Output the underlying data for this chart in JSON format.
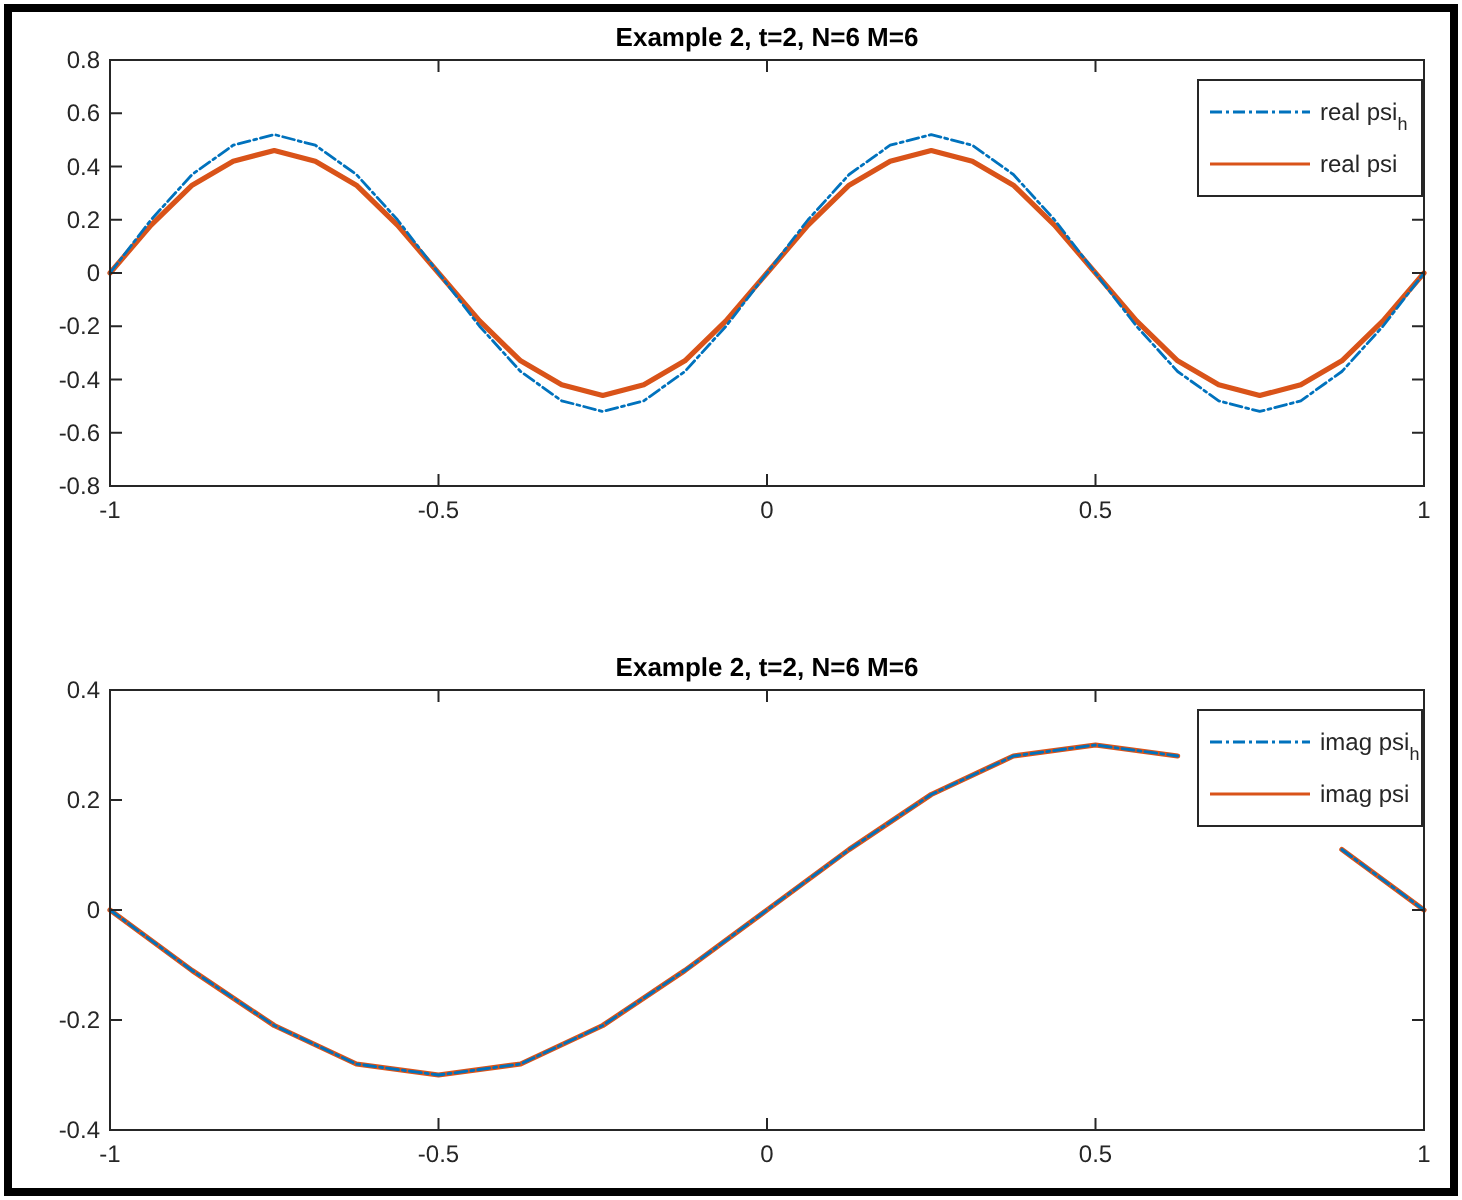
{
  "chart_data": [
    {
      "type": "line",
      "title": "Example 2, t=2, N=6 M=6",
      "xlim": [
        -1,
        1
      ],
      "ylim": [
        -0.8,
        0.8
      ],
      "xticks": [
        -1,
        -0.5,
        0,
        0.5,
        1
      ],
      "yticks": [
        -0.8,
        -0.6,
        -0.4,
        -0.2,
        0,
        0.2,
        0.4,
        0.6,
        0.8
      ],
      "legend": "top right",
      "grid": false,
      "x": [
        -1,
        -0.9375,
        -0.875,
        -0.8125,
        -0.75,
        -0.6875,
        -0.625,
        -0.5625,
        -0.5,
        -0.4375,
        -0.375,
        -0.3125,
        -0.25,
        -0.1875,
        -0.125,
        -0.0625,
        0,
        0.0625,
        0.125,
        0.1875,
        0.25,
        0.3125,
        0.375,
        0.4375,
        0.5,
        0.5625,
        0.625,
        0.6875,
        0.75,
        0.8125,
        0.875,
        0.9375,
        1
      ],
      "series": [
        {
          "name": "real psi$_{h}$",
          "color": "#0072bd",
          "line_style": "dashed",
          "values": [
            0,
            0.2,
            0.37,
            0.48,
            0.52,
            0.48,
            0.37,
            0.2,
            0,
            -0.2,
            -0.37,
            -0.48,
            -0.52,
            -0.48,
            -0.37,
            -0.2,
            0,
            0.2,
            0.37,
            0.48,
            0.52,
            0.48,
            0.37,
            0.2,
            0,
            -0.2,
            -0.37,
            -0.48,
            -0.52,
            -0.48,
            -0.37,
            -0.2,
            0
          ]
        },
        {
          "name": "real psi",
          "color": "#d95319",
          "line_style": "solid",
          "values": [
            0,
            0.18,
            0.33,
            0.42,
            0.46,
            0.42,
            0.33,
            0.18,
            0,
            -0.18,
            -0.33,
            -0.42,
            -0.46,
            -0.42,
            -0.33,
            -0.18,
            0,
            0.18,
            0.33,
            0.42,
            0.46,
            0.42,
            0.33,
            0.18,
            0,
            -0.18,
            -0.33,
            -0.42,
            -0.46,
            -0.42,
            -0.33,
            -0.18,
            0
          ]
        }
      ]
    },
    {
      "type": "line",
      "title": "Example 2, t=2, N=6 M=6",
      "xlim": [
        -1,
        1
      ],
      "ylim": [
        -0.4,
        0.4
      ],
      "xticks": [
        -1,
        -0.5,
        0,
        0.5,
        1
      ],
      "yticks": [
        -0.4,
        -0.2,
        0,
        0.2,
        0.4
      ],
      "legend": "top right",
      "grid": false,
      "x": [
        -1,
        -0.875,
        -0.75,
        -0.625,
        -0.5,
        -0.375,
        -0.25,
        -0.125,
        0,
        0.125,
        0.25,
        0.375,
        0.5,
        0.625,
        0.75,
        0.875,
        1
      ],
      "series": [
        {
          "name": "imag psi$_{h}$",
          "color": "#0072bd",
          "line_style": "dashed",
          "values": [
            0,
            -0.11,
            -0.21,
            -0.28,
            -0.3,
            -0.28,
            -0.21,
            -0.11,
            0,
            0.11,
            0.21,
            0.28,
            0.3,
            0.28,
            null,
            0.11,
            0
          ]
        },
        {
          "name": "imag psi",
          "color": "#d95319",
          "line_style": "solid",
          "values": [
            0,
            -0.11,
            -0.21,
            -0.28,
            -0.3,
            -0.28,
            -0.21,
            -0.11,
            0,
            0.11,
            0.21,
            0.28,
            0.3,
            0.28,
            null,
            0.11,
            0
          ]
        }
      ]
    }
  ]
}
